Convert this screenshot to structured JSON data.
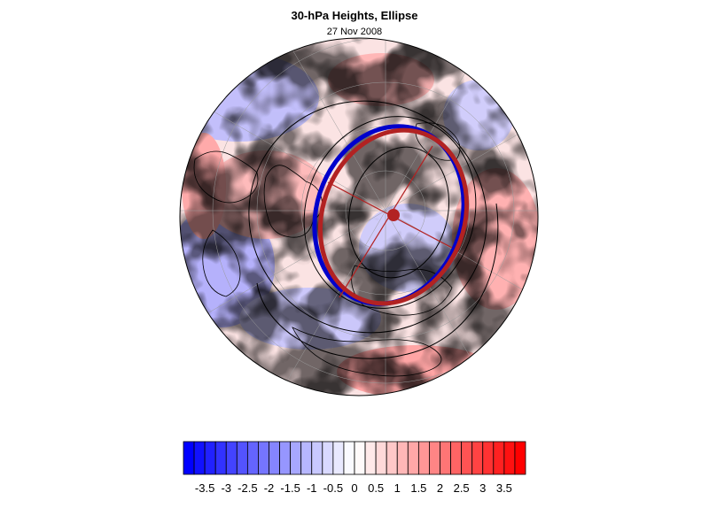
{
  "header": {
    "title": "30-hPa Heights, Ellipse",
    "subtitle": "27 Nov 2008"
  },
  "colors": {
    "blue_max": "#0000ff",
    "white": "#ffffff",
    "red_max": "#ff0000",
    "ellipse_fit": "#b22222",
    "ellipse_obs": "#0000cc",
    "contour": "#000000"
  },
  "colorbar": {
    "labels": [
      "-3.5",
      "-3",
      "-2.5",
      "-2",
      "-1.5",
      "-1",
      "-0.5",
      "0",
      "0.5",
      "1",
      "1.5",
      "2",
      "2.5",
      "3",
      "3.5"
    ],
    "min": -4,
    "max": 4,
    "steps": 32
  }
}
